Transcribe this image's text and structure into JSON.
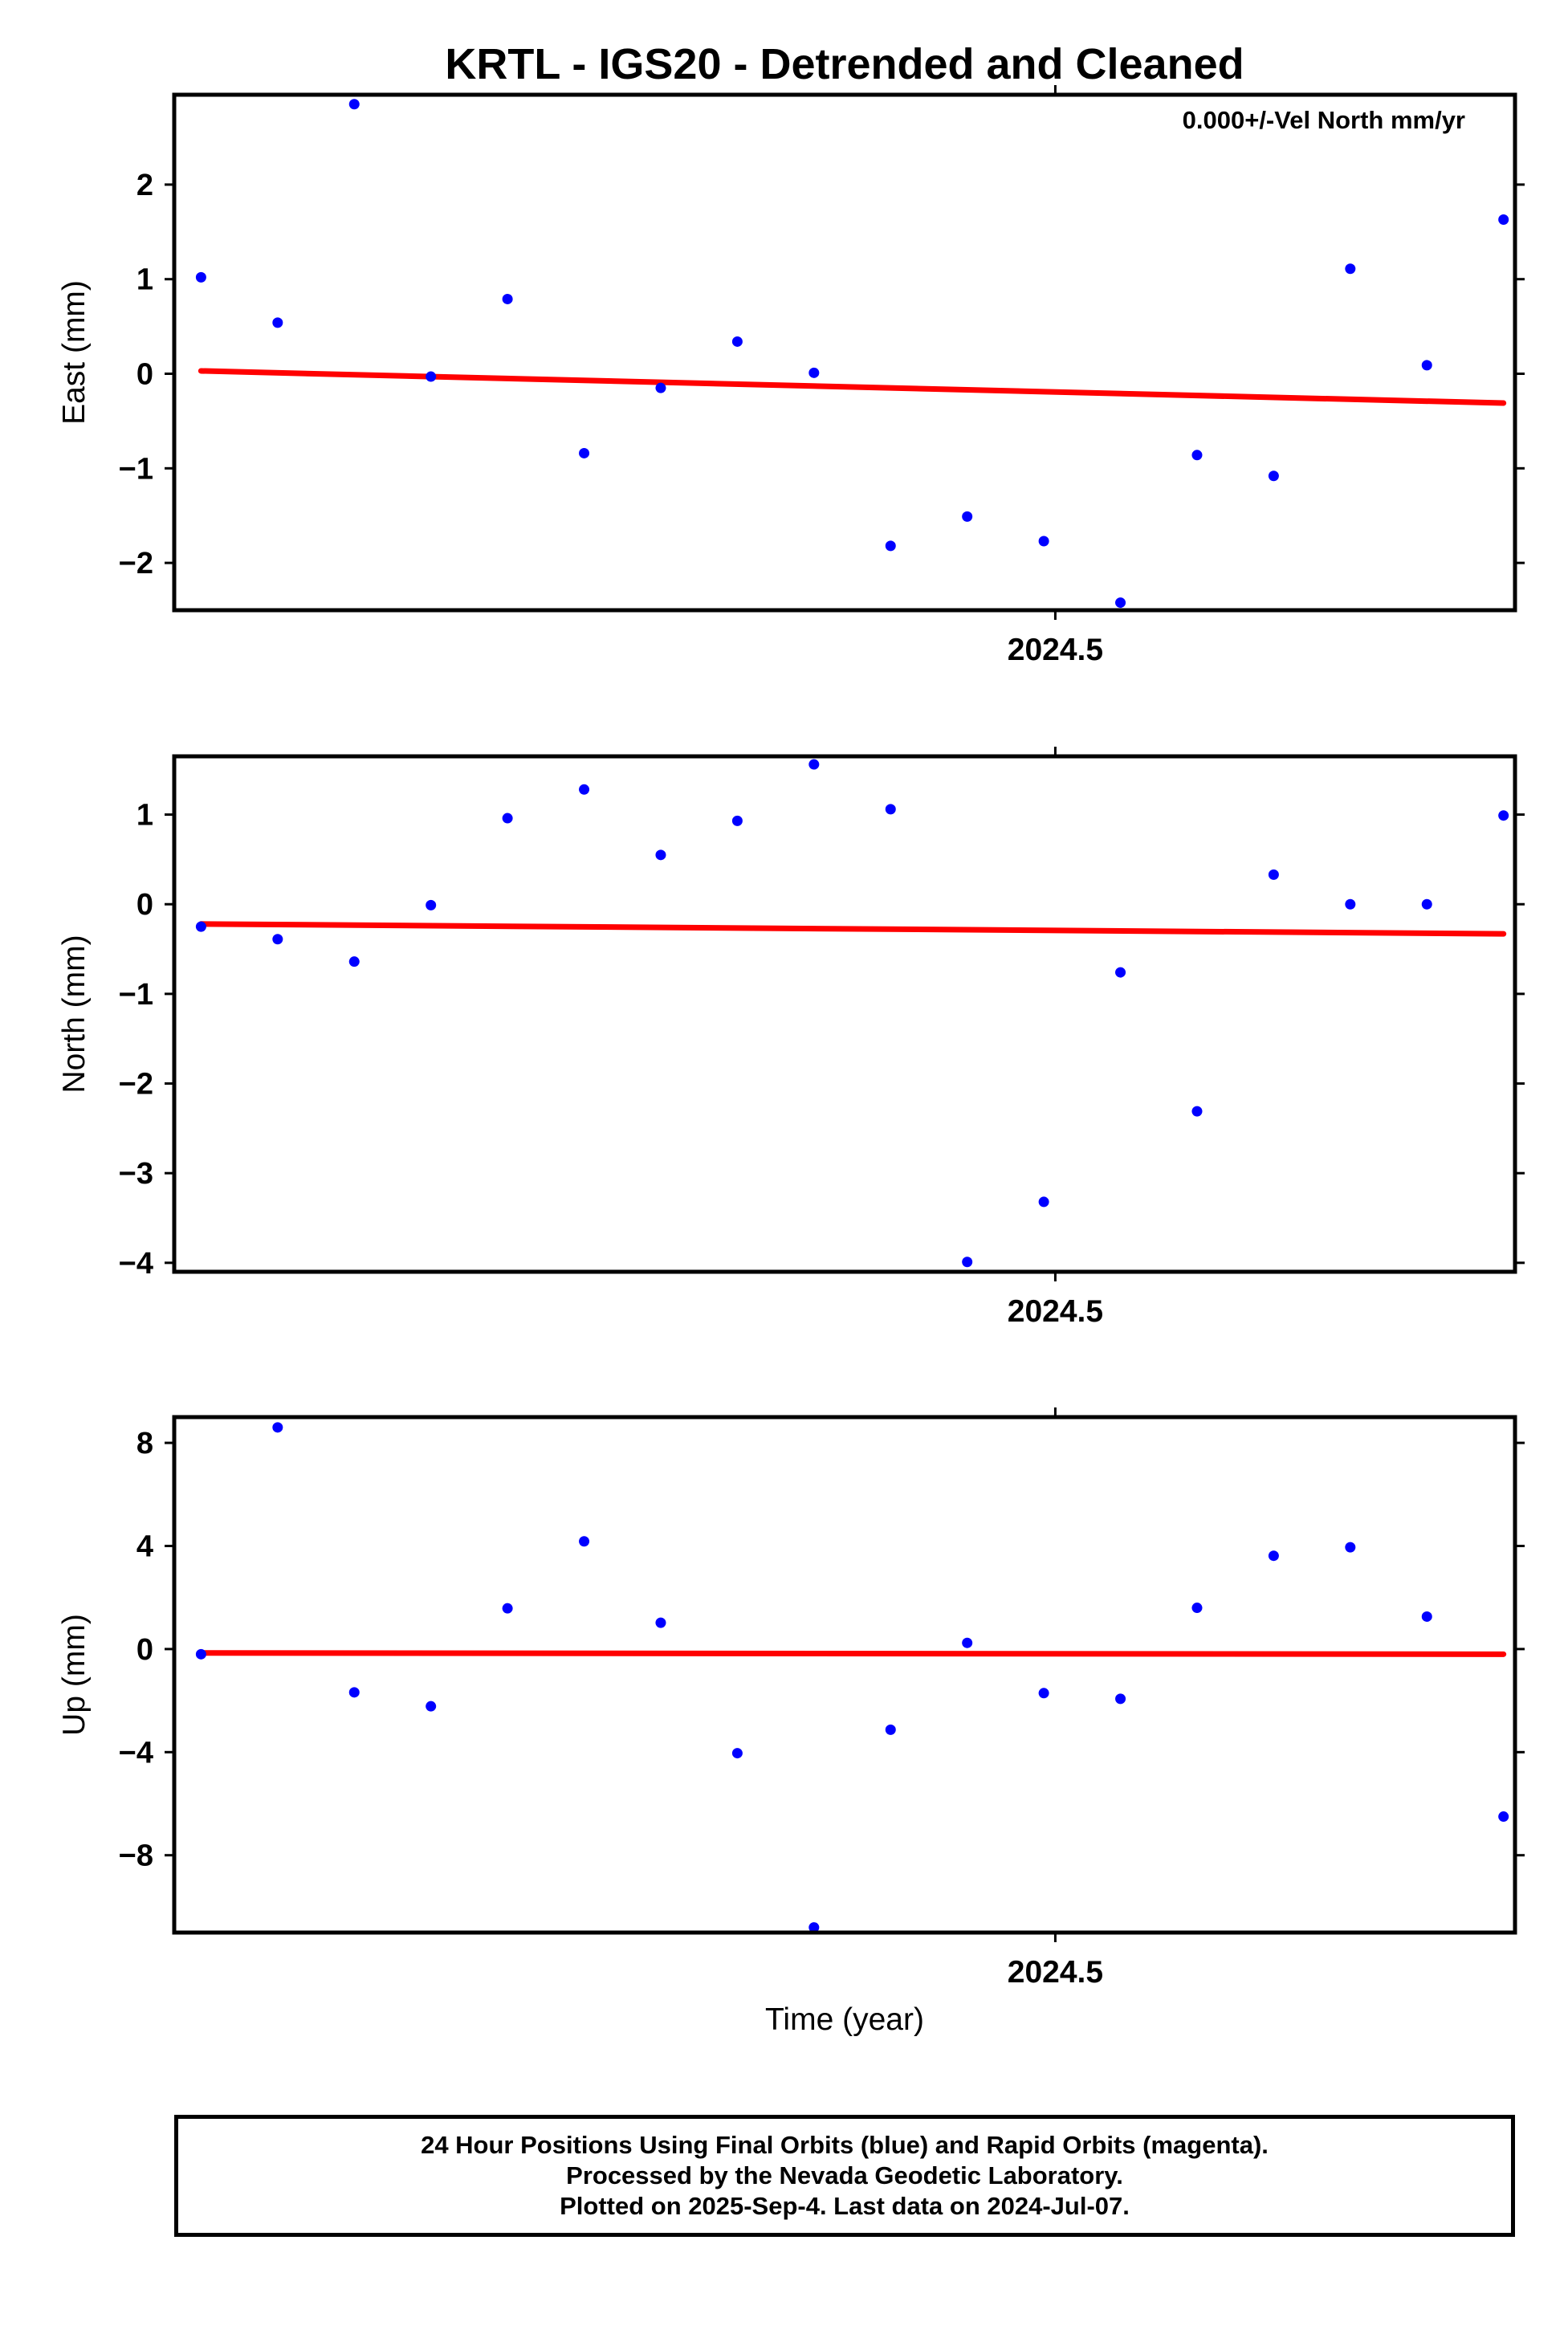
{
  "title": "KRTL - IGS20 - Detrended and Cleaned",
  "x_axis": {
    "label": "Time (year)",
    "tick_label": "2024.5",
    "tick_value": 2024.5,
    "range": [
      2024.27,
      2024.62
    ]
  },
  "colors": {
    "points": "#0000ff",
    "trend": "#ff0000",
    "frame": "#000000"
  },
  "chart_data": [
    {
      "type": "scatter",
      "name": "east",
      "ylabel": "East (mm)",
      "annotation": "0.000+/-Vel North mm/yr",
      "ylim": [
        -2.5,
        2.95
      ],
      "yticks": [
        2,
        1,
        0,
        -1,
        -2
      ],
      "ytick_labels": [
        "2",
        "1",
        "0",
        "−1",
        "−2"
      ],
      "x": [
        2024.277,
        2024.297,
        2024.317,
        2024.337,
        2024.357,
        2024.377,
        2024.397,
        2024.417,
        2024.437,
        2024.457,
        2024.477,
        2024.497,
        2024.517,
        2024.537,
        2024.557,
        2024.577,
        2024.597,
        2024.617
      ],
      "y": [
        1.02,
        0.54,
        2.85,
        -0.03,
        0.79,
        -0.84,
        -0.15,
        0.34,
        0.01,
        -1.82,
        -1.51,
        -1.77,
        -2.42,
        -0.86,
        -1.08,
        1.11,
        0.09,
        1.63
      ],
      "trend": {
        "x": [
          2024.277,
          2024.617
        ],
        "y": [
          0.03,
          -0.31
        ]
      }
    },
    {
      "type": "scatter",
      "name": "north",
      "ylabel": "North (mm)",
      "annotation": "",
      "ylim": [
        -4.1,
        1.65
      ],
      "yticks": [
        1,
        0,
        -1,
        -2,
        -3,
        -4
      ],
      "ytick_labels": [
        "1",
        "0",
        "−1",
        "−2",
        "−3",
        "−4"
      ],
      "x": [
        2024.277,
        2024.297,
        2024.317,
        2024.337,
        2024.357,
        2024.377,
        2024.397,
        2024.417,
        2024.437,
        2024.457,
        2024.477,
        2024.497,
        2024.517,
        2024.537,
        2024.557,
        2024.577,
        2024.597,
        2024.617
      ],
      "y": [
        -0.25,
        -0.39,
        -0.64,
        -0.01,
        0.96,
        1.28,
        0.55,
        0.93,
        1.56,
        1.06,
        -3.99,
        -3.32,
        -0.76,
        -2.31,
        0.33,
        0.0,
        0.0,
        0.99
      ],
      "trend": {
        "x": [
          2024.277,
          2024.617
        ],
        "y": [
          -0.22,
          -0.33
        ]
      }
    },
    {
      "type": "scatter",
      "name": "up",
      "ylabel": "Up (mm)",
      "annotation": "",
      "ylim": [
        -11.0,
        9.0
      ],
      "yticks": [
        8,
        4,
        0,
        -4,
        -8
      ],
      "ytick_labels": [
        "8",
        "4",
        "0",
        "−4",
        "−8"
      ],
      "x": [
        2024.277,
        2024.297,
        2024.317,
        2024.337,
        2024.357,
        2024.377,
        2024.397,
        2024.417,
        2024.437,
        2024.457,
        2024.477,
        2024.497,
        2024.517,
        2024.537,
        2024.557,
        2024.577,
        2024.597,
        2024.617
      ],
      "y": [
        -0.2,
        8.6,
        -1.68,
        -2.22,
        1.58,
        4.18,
        1.02,
        -4.04,
        -10.8,
        -3.13,
        0.24,
        -1.71,
        -1.93,
        1.6,
        3.62,
        3.95,
        1.26,
        -6.5
      ],
      "trend": {
        "x": [
          2024.277,
          2024.617
        ],
        "y": [
          -0.15,
          -0.2
        ]
      }
    }
  ],
  "caption": {
    "line1": "24 Hour Positions Using Final Orbits (blue) and Rapid Orbits (magenta).",
    "line2": "Processed by the Nevada Geodetic Laboratory.",
    "line3": "Plotted on 2025-Sep-4. Last data on 2024-Jul-07."
  }
}
